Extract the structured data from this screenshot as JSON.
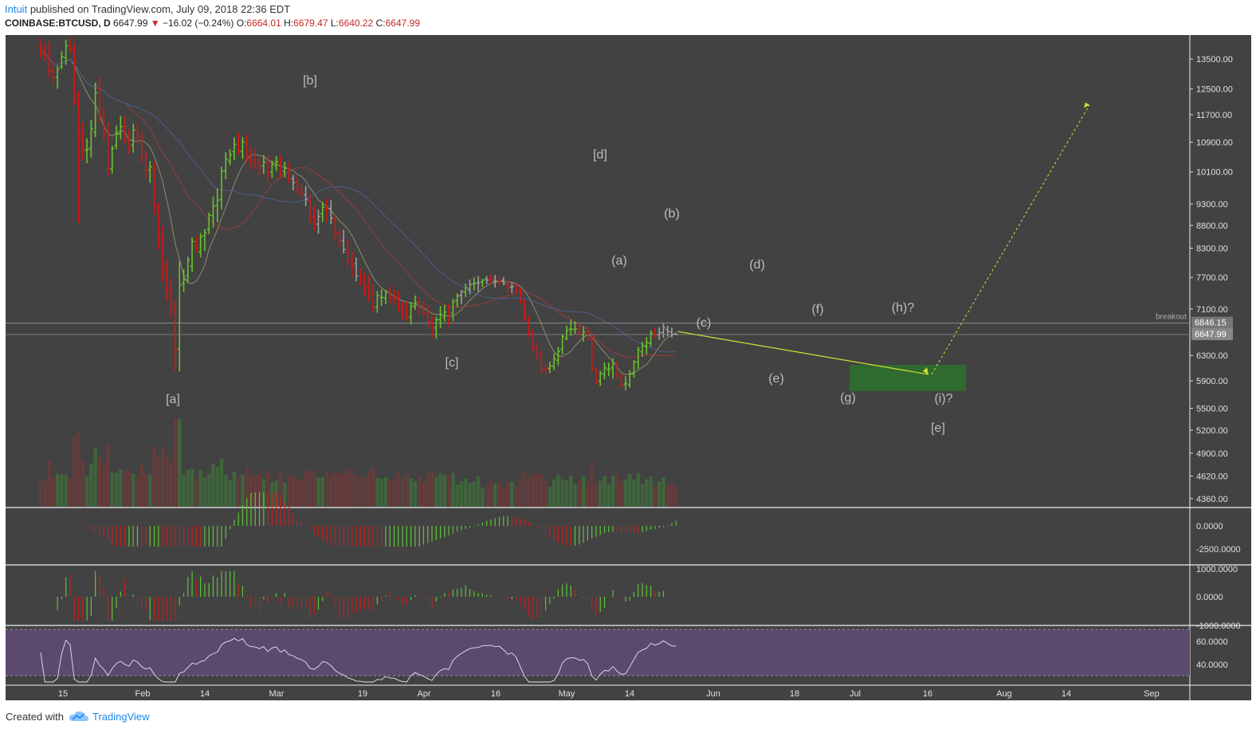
{
  "header": {
    "author": "Intuit",
    "published_text": "published on TradingView.com, July 09, 2018 22:36 EDT",
    "symbol": "COINBASE:BTCUSD, D",
    "last": "6647.99",
    "change": "−16.02 (−0.24%)",
    "open_label": "O:",
    "open": "6664.01",
    "high_label": "H:",
    "high": "6679.47",
    "low_label": "L:",
    "low": "6640.22",
    "close_label": "C:",
    "close": "6647.99"
  },
  "footer": {
    "created_with": "Created with",
    "brand": "TradingView"
  },
  "colors": {
    "background": "#424242",
    "up": "#6ac22c",
    "down": "#d81414",
    "neutral": "#9e9e9e",
    "rsi_band": "#5c4a6e",
    "target_zone": "#2e6f2e",
    "projection": "#d4e030"
  },
  "chart_data": {
    "type": "ohlc-bar",
    "symbol": "COINBASE:BTCUSD",
    "timeframe": "D",
    "scale": "log",
    "y_ticks": [
      "13500.00",
      "12500.00",
      "11700.00",
      "10900.00",
      "10100.00",
      "9300.00",
      "8800.00",
      "8300.00",
      "7700.00",
      "7100.00",
      "6300.00",
      "5900.00",
      "5500.00",
      "5200.00",
      "4900.00",
      "4620.00",
      "4360.00"
    ],
    "x_ticks": [
      "15",
      "Feb",
      "14",
      "Mar",
      "19",
      "Apr",
      "16",
      "May",
      "14",
      "Jun",
      "18",
      "Jul",
      "16",
      "Aug",
      "14",
      "Sep"
    ],
    "price_labels": [
      "6846.15",
      "6647.99"
    ],
    "breakout_label": "breakout",
    "wave_labels": [
      "[a]",
      "[b]",
      "[c]",
      "[d]",
      "[e]",
      "(a)",
      "(b)",
      "(c)",
      "(d)",
      "(e)",
      "(f)",
      "(g)",
      "(h)?",
      "(i)?"
    ],
    "macd_ticks": [
      "0.0000",
      "-2500.0000"
    ],
    "osc_ticks": [
      "1000.0000",
      "0.0000",
      "-1000.0000"
    ],
    "rsi_ticks": [
      "60.0000",
      "40.0000"
    ],
    "key_points": [
      {
        "date": "Jan 9",
        "price": 13500
      },
      {
        "date": "Feb 6",
        "price": 5900
      },
      {
        "date": "Feb 20",
        "price": 11700
      },
      {
        "date": "Mar 5",
        "price": 11500
      },
      {
        "date": "Mar 31",
        "price": 6600
      },
      {
        "date": "May 5",
        "price": 9900
      },
      {
        "date": "May 12",
        "price": 8300
      },
      {
        "date": "May 29",
        "price": 7100
      },
      {
        "date": "Jun 13",
        "price": 6300
      },
      {
        "date": "Jun 21",
        "price": 6800
      },
      {
        "date": "Jun 29",
        "price": 5800
      },
      {
        "date": "Jul 9",
        "price": 6648
      }
    ],
    "target_zone": {
      "from": "Jun 30",
      "to": "Jul 25",
      "low": 5750,
      "high": 6150
    },
    "projection": {
      "from_price": 6700,
      "to_date": "Jul 16",
      "to_price": 6000,
      "target_date": "Aug 29",
      "target_price": 12000
    },
    "candles": [
      {
        "o": 13904,
        "h": 14246,
        "l": 13546,
        "c": 13746
      },
      {
        "o": 13830,
        "h": 14057,
        "l": 13433,
        "c": 13683
      },
      {
        "o": 13615,
        "h": 14139,
        "l": 12882,
        "c": 13101
      },
      {
        "o": 13097,
        "h": 13455,
        "l": 12694,
        "c": 12855
      },
      {
        "o": 12887,
        "h": 13278,
        "l": 12506,
        "c": 13153
      },
      {
        "o": 13235,
        "h": 13771,
        "l": 13162,
        "c": 13577
      },
      {
        "o": 13548,
        "h": 14193,
        "l": 13297,
        "c": 13968
      },
      {
        "o": 13962,
        "h": 14303,
        "l": 13725,
        "c": 13849
      },
      {
        "o": 13822,
        "h": 14052,
        "l": 11990,
        "c": 12109
      },
      {
        "o": 12048,
        "h": 12429,
        "l": 8859,
        "c": 11096
      },
      {
        "o": 10971,
        "h": 11468,
        "l": 10398,
        "c": 10640
      },
      {
        "o": 10676,
        "h": 11011,
        "l": 10327,
        "c": 10698
      },
      {
        "o": 10734,
        "h": 11549,
        "l": 10474,
        "c": 11280
      },
      {
        "o": 11186,
        "h": 12709,
        "l": 11043,
        "c": 12376
      },
      {
        "o": 12512,
        "h": 12885,
        "l": 11460,
        "c": 11628
      },
      {
        "o": 11644,
        "h": 11911,
        "l": 10938,
        "c": 11120
      },
      {
        "o": 11237,
        "h": 11451,
        "l": 9995,
        "c": 10188
      },
      {
        "o": 10181,
        "h": 10803,
        "l": 10057,
        "c": 10731
      },
      {
        "o": 10809,
        "h": 11373,
        "l": 10702,
        "c": 11139
      },
      {
        "o": 11140,
        "h": 11663,
        "l": 10979,
        "c": 11351
      },
      {
        "o": 11351,
        "h": 11669,
        "l": 10868,
        "c": 10966
      },
      {
        "o": 10927,
        "h": 11272,
        "l": 10573,
        "c": 10733
      },
      {
        "o": 10817,
        "h": 11426,
        "l": 10609,
        "c": 11249
      },
      {
        "o": 11218,
        "h": 11423,
        "l": 10874,
        "c": 11018
      },
      {
        "o": 11072,
        "h": 11193,
        "l": 10330,
        "c": 10470
      },
      {
        "o": 10543,
        "h": 10659,
        "l": 9947,
        "c": 10130
      },
      {
        "o": 10158,
        "h": 10387,
        "l": 9821,
        "c": 10232
      },
      {
        "o": 10186,
        "h": 10360,
        "l": 9057,
        "c": 9287
      },
      {
        "o": 9236,
        "h": 9326,
        "l": 8276,
        "c": 8532
      },
      {
        "o": 8524,
        "h": 8778,
        "l": 7611,
        "c": 7917
      },
      {
        "o": 7875,
        "h": 8034,
        "l": 7255,
        "c": 7483
      },
      {
        "o": 7446,
        "h": 7689,
        "l": 6958,
        "c": 7174
      },
      {
        "o": 7085,
        "h": 7268,
        "l": 6056,
        "c": 6383
      },
      {
        "o": 6402,
        "h": 8022,
        "l": 6048,
        "c": 7542
      },
      {
        "o": 7584,
        "h": 7868,
        "l": 7421,
        "c": 7653
      },
      {
        "o": 7739,
        "h": 8124,
        "l": 7605,
        "c": 8052
      },
      {
        "o": 7930,
        "h": 8536,
        "l": 7811,
        "c": 8441
      },
      {
        "o": 8453,
        "h": 8567,
        "l": 8208,
        "c": 8302
      },
      {
        "o": 8225,
        "h": 8630,
        "l": 8109,
        "c": 8545
      },
      {
        "o": 8573,
        "h": 8720,
        "l": 8240,
        "c": 8632
      },
      {
        "o": 8716,
        "h": 9099,
        "l": 8607,
        "c": 9041
      },
      {
        "o": 9024,
        "h": 9478,
        "l": 8749,
        "c": 9238
      },
      {
        "o": 9268,
        "h": 9684,
        "l": 8874,
        "c": 9390
      },
      {
        "o": 9405,
        "h": 10239,
        "l": 9179,
        "c": 10119
      },
      {
        "o": 10124,
        "h": 10624,
        "l": 9913,
        "c": 10434
      },
      {
        "o": 10383,
        "h": 10708,
        "l": 10276,
        "c": 10556
      },
      {
        "o": 10638,
        "h": 11036,
        "l": 10406,
        "c": 10840
      },
      {
        "o": 10854,
        "h": 11165,
        "l": 10552,
        "c": 10651
      },
      {
        "o": 10646,
        "h": 11047,
        "l": 10439,
        "c": 10908
      },
      {
        "o": 10878,
        "h": 11126,
        "l": 10353,
        "c": 10482
      },
      {
        "o": 10538,
        "h": 10793,
        "l": 10193,
        "c": 10344
      },
      {
        "o": 10402,
        "h": 10699,
        "l": 10154,
        "c": 10311
      },
      {
        "o": 10349,
        "h": 10495,
        "l": 10019,
        "c": 10206
      },
      {
        "o": 10255,
        "h": 10540,
        "l": 10052,
        "c": 10356
      },
      {
        "o": 10329,
        "h": 10538,
        "l": 9880,
        "c": 10037
      },
      {
        "o": 10093,
        "h": 10397,
        "l": 9948,
        "c": 10299
      },
      {
        "o": 10260,
        "h": 10520,
        "l": 10121,
        "c": 10366
      },
      {
        "o": 10309,
        "h": 10531,
        "l": 9911,
        "c": 10047
      },
      {
        "o": 10116,
        "h": 10363,
        "l": 9955,
        "c": 10195
      },
      {
        "o": 10207,
        "h": 10359,
        "l": 9822,
        "c": 9895
      },
      {
        "o": 9924,
        "h": 10022,
        "l": 9629,
        "c": 9825
      },
      {
        "o": 9863,
        "h": 9969,
        "l": 9539,
        "c": 9657
      },
      {
        "o": 9654,
        "h": 9802,
        "l": 9427,
        "c": 9573
      },
      {
        "o": 9521,
        "h": 9746,
        "l": 9244,
        "c": 9408
      },
      {
        "o": 9368,
        "h": 9544,
        "l": 8855,
        "c": 8968
      },
      {
        "o": 8994,
        "h": 9250,
        "l": 8695,
        "c": 8881
      },
      {
        "o": 8829,
        "h": 9166,
        "l": 8615,
        "c": 9006
      },
      {
        "o": 9072,
        "h": 9349,
        "l": 8881,
        "c": 9219
      },
      {
        "o": 9177,
        "h": 9429,
        "l": 8889,
        "c": 9171
      },
      {
        "o": 9193,
        "h": 9404,
        "l": 8827,
        "c": 8970
      },
      {
        "o": 8925,
        "h": 9041,
        "l": 8500,
        "c": 8630
      },
      {
        "o": 8620,
        "h": 8733,
        "l": 8307,
        "c": 8424
      },
      {
        "o": 8470,
        "h": 8710,
        "l": 8189,
        "c": 8274
      },
      {
        "o": 8215,
        "h": 8489,
        "l": 7922,
        "c": 8033
      },
      {
        "o": 8026,
        "h": 8225,
        "l": 7716,
        "c": 7911
      },
      {
        "o": 7975,
        "h": 8103,
        "l": 7625,
        "c": 7729
      },
      {
        "o": 7737,
        "h": 7876,
        "l": 7535,
        "c": 7694
      },
      {
        "o": 7641,
        "h": 7785,
        "l": 7343,
        "c": 7492
      },
      {
        "o": 7513,
        "h": 7752,
        "l": 7240,
        "c": 7373
      },
      {
        "o": 7377,
        "h": 7563,
        "l": 7036,
        "c": 7117
      },
      {
        "o": 7140,
        "h": 7439,
        "l": 7032,
        "c": 7347
      },
      {
        "o": 7305,
        "h": 7467,
        "l": 7157,
        "c": 7317
      },
      {
        "o": 7306,
        "h": 7457,
        "l": 7185,
        "c": 7415
      },
      {
        "o": 7442,
        "h": 7553,
        "l": 7199,
        "c": 7305
      },
      {
        "o": 7332,
        "h": 7460,
        "l": 7173,
        "c": 7293
      },
      {
        "o": 7306,
        "h": 7439,
        "l": 7048,
        "c": 7154
      },
      {
        "o": 7119,
        "h": 7235,
        "l": 6911,
        "c": 7049
      },
      {
        "o": 7040,
        "h": 7237,
        "l": 6880,
        "c": 6966
      },
      {
        "o": 6951,
        "h": 7230,
        "l": 6825,
        "c": 7140
      },
      {
        "o": 7155,
        "h": 7350,
        "l": 7086,
        "c": 7218
      },
      {
        "o": 7215,
        "h": 7326,
        "l": 7000,
        "c": 7110
      },
      {
        "o": 7159,
        "h": 7248,
        "l": 6960,
        "c": 7020
      },
      {
        "o": 7020,
        "h": 7170,
        "l": 6746,
        "c": 6875
      },
      {
        "o": 6860,
        "h": 6985,
        "l": 6591,
        "c": 6763
      },
      {
        "o": 6762,
        "h": 6963,
        "l": 6580,
        "c": 6904
      },
      {
        "o": 6909,
        "h": 7154,
        "l": 6759,
        "c": 6995
      },
      {
        "o": 6954,
        "h": 7178,
        "l": 6872,
        "c": 7040
      },
      {
        "o": 7052,
        "h": 7193,
        "l": 6784,
        "c": 7004
      },
      {
        "o": 7024,
        "h": 7287,
        "l": 6885,
        "c": 7226
      },
      {
        "o": 7255,
        "h": 7394,
        "l": 7132,
        "c": 7340
      },
      {
        "o": 7354,
        "h": 7458,
        "l": 7187,
        "c": 7425
      },
      {
        "o": 7415,
        "h": 7577,
        "l": 7320,
        "c": 7500
      },
      {
        "o": 7469,
        "h": 7659,
        "l": 7366,
        "c": 7564
      },
      {
        "o": 7570,
        "h": 7697,
        "l": 7450,
        "c": 7585
      },
      {
        "o": 7592,
        "h": 7728,
        "l": 7418,
        "c": 7595
      },
      {
        "o": 7612,
        "h": 7673,
        "l": 7519,
        "c": 7646
      },
      {
        "o": 7672,
        "h": 7730,
        "l": 7571,
        "c": 7646
      },
      {
        "o": 7658,
        "h": 7762,
        "l": 7568,
        "c": 7654
      },
      {
        "o": 7620,
        "h": 7747,
        "l": 7502,
        "c": 7628
      },
      {
        "o": 7644,
        "h": 7723,
        "l": 7547,
        "c": 7638
      },
      {
        "o": 7643,
        "h": 7712,
        "l": 7548,
        "c": 7580
      },
      {
        "o": 7565,
        "h": 7658,
        "l": 7398,
        "c": 7503
      },
      {
        "o": 7510,
        "h": 7584,
        "l": 7395,
        "c": 7522
      },
      {
        "o": 7549,
        "h": 7588,
        "l": 7370,
        "c": 7448
      },
      {
        "o": 7466,
        "h": 7500,
        "l": 7183,
        "c": 7242
      },
      {
        "o": 7261,
        "h": 7265,
        "l": 6884,
        "c": 6940
      },
      {
        "o": 6896,
        "h": 6973,
        "l": 6608,
        "c": 6669
      },
      {
        "o": 6663,
        "h": 6728,
        "l": 6363,
        "c": 6434
      },
      {
        "o": 6413,
        "h": 6516,
        "l": 6233,
        "c": 6330
      },
      {
        "o": 6312,
        "h": 6390,
        "l": 6023,
        "c": 6059
      },
      {
        "o": 6088,
        "h": 6173,
        "l": 5999,
        "c": 6082
      },
      {
        "o": 6095,
        "h": 6203,
        "l": 6023,
        "c": 6132
      },
      {
        "o": 6128,
        "h": 6333,
        "l": 6066,
        "c": 6246
      },
      {
        "o": 6221,
        "h": 6437,
        "l": 6143,
        "c": 6369
      },
      {
        "o": 6403,
        "h": 6654,
        "l": 6314,
        "c": 6615
      },
      {
        "o": 6581,
        "h": 6801,
        "l": 6552,
        "c": 6720
      },
      {
        "o": 6738,
        "h": 6910,
        "l": 6623,
        "c": 6746
      },
      {
        "o": 6731,
        "h": 6878,
        "l": 6661,
        "c": 6745
      },
      {
        "o": 6745,
        "h": 6841,
        "l": 6599,
        "c": 6679
      },
      {
        "o": 6643,
        "h": 6791,
        "l": 6529,
        "c": 6692
      },
      {
        "o": 6667,
        "h": 6779,
        "l": 6540,
        "c": 6581
      },
      {
        "o": 6563,
        "h": 6631,
        "l": 6034,
        "c": 6109
      },
      {
        "o": 6086,
        "h": 6107,
        "l": 5852,
        "c": 5889
      },
      {
        "o": 5900,
        "h": 6056,
        "l": 5828,
        "c": 6017
      },
      {
        "o": 6006,
        "h": 6188,
        "l": 5923,
        "c": 6102
      },
      {
        "o": 6078,
        "h": 6185,
        "l": 5972,
        "c": 6081
      },
      {
        "o": 6103,
        "h": 6259,
        "l": 5932,
        "c": 6179
      },
      {
        "o": 6155,
        "h": 6200,
        "l": 5923,
        "c": 5991
      },
      {
        "o": 5958,
        "h": 6023,
        "l": 5789,
        "c": 5844
      },
      {
        "o": 5852,
        "h": 5974,
        "l": 5761,
        "c": 5861
      },
      {
        "o": 5842,
        "h": 6068,
        "l": 5798,
        "c": 6002
      },
      {
        "o": 6008,
        "h": 6225,
        "l": 5948,
        "c": 6190
      },
      {
        "o": 6201,
        "h": 6446,
        "l": 6087,
        "c": 6388
      },
      {
        "o": 6359,
        "h": 6527,
        "l": 6279,
        "c": 6458
      },
      {
        "o": 6442,
        "h": 6599,
        "l": 6315,
        "c": 6510
      },
      {
        "o": 6500,
        "h": 6725,
        "l": 6442,
        "c": 6670
      },
      {
        "o": 6701,
        "h": 6769,
        "l": 6580,
        "c": 6628
      },
      {
        "o": 6646,
        "h": 6774,
        "l": 6558,
        "c": 6677
      },
      {
        "o": 6684,
        "h": 6839,
        "l": 6590,
        "c": 6764
      },
      {
        "o": 6735,
        "h": 6803,
        "l": 6622,
        "c": 6704
      },
      {
        "o": 6693,
        "h": 6768,
        "l": 6600,
        "c": 6653
      },
      {
        "o": 6664,
        "h": 6679,
        "l": 6640,
        "c": 6648
      }
    ]
  }
}
